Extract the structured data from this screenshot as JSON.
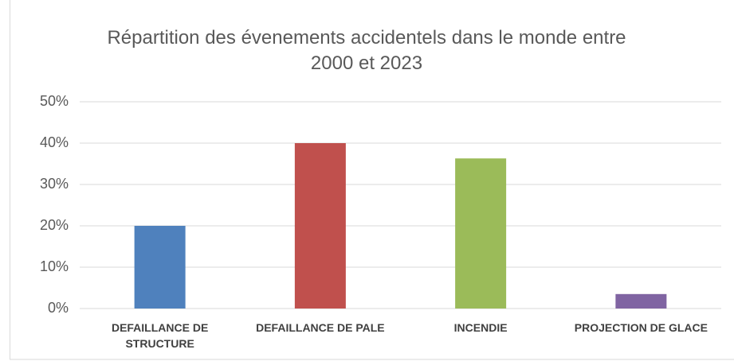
{
  "chart_data": {
    "type": "bar",
    "title": "Répartition des évenements accidentels dans le monde entre 2000 et 2023",
    "categories": [
      "DEFAILLANCE DE STRUCTURE",
      "DEFAILLANCE DE PALE",
      "INCENDIE",
      "PROJECTION DE GLACE"
    ],
    "values": [
      20,
      40,
      36.3,
      3.5
    ],
    "colors": [
      "#4f81bd",
      "#c0504d",
      "#9bbb59",
      "#8064a2"
    ],
    "ylim": [
      0,
      50
    ],
    "yticks": [
      {
        "value": 0,
        "label": "0%"
      },
      {
        "value": 10,
        "label": "10%"
      },
      {
        "value": 20,
        "label": "20%"
      },
      {
        "value": 30,
        "label": "30%"
      },
      {
        "value": 40,
        "label": "40%"
      },
      {
        "value": 50,
        "label": "50%"
      }
    ],
    "grid": true
  }
}
